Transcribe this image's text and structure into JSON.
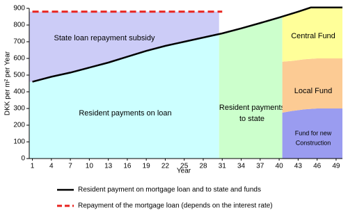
{
  "chart_data": {
    "type": "line",
    "xlabel": "Year",
    "ylabel": "DKK per m² per Year",
    "xlim": [
      0.5,
      50
    ],
    "xticks": [
      1,
      4,
      7,
      10,
      13,
      16,
      19,
      22,
      25,
      28,
      31,
      34,
      37,
      40,
      43,
      46,
      49
    ],
    "ylim": [
      0,
      900
    ],
    "yticks": [
      0,
      100,
      200,
      300,
      400,
      500,
      600,
      700,
      800,
      900
    ],
    "regions": [
      {
        "label": [
          "Resident payments on loan"
        ],
        "color": "#ccffff",
        "x": [
          0.5,
          30.5
        ],
        "bottom": 0
      },
      {
        "label": [
          "State loan repayment subsidy"
        ],
        "color": "#ccccf7",
        "x": [
          0.5,
          30.5
        ],
        "top": 880
      },
      {
        "label": [
          "Resident payments",
          "to state"
        ],
        "color": "#ccffcc",
        "x": [
          30.5,
          40.5
        ],
        "bottom": 0
      }
    ],
    "stack": {
      "x": [
        40.5,
        42,
        44,
        46,
        48,
        50
      ],
      "series": [
        {
          "name": [
            "Fund for new",
            "Construction"
          ],
          "color": "#9a9cf0",
          "values": [
            275,
            285,
            295,
            300,
            300,
            300
          ]
        },
        {
          "name": [
            "Local Fund"
          ],
          "color": "#fccb94",
          "values": [
            305,
            300,
            300,
            300,
            300,
            300
          ]
        },
        {
          "name": [
            "Central Fund"
          ],
          "color": "#ffff99"
        }
      ]
    },
    "series": [
      {
        "name": "Resident payment on mortgage loan and to state and funds",
        "color": "#000000",
        "dash": false,
        "x": [
          1,
          4,
          7,
          10,
          13,
          16,
          19,
          22,
          25,
          28,
          31,
          34,
          37,
          40,
          43,
          45,
          50
        ],
        "values": [
          460,
          490,
          515,
          545,
          575,
          610,
          645,
          675,
          700,
          725,
          750,
          780,
          812,
          845,
          880,
          905,
          905
        ]
      },
      {
        "name": "Repayment of the mortgage loan (depends on the interest rate)",
        "color": "#e8231f",
        "dash": true,
        "x": [
          1,
          31
        ],
        "values": [
          880,
          880
        ]
      }
    ]
  }
}
